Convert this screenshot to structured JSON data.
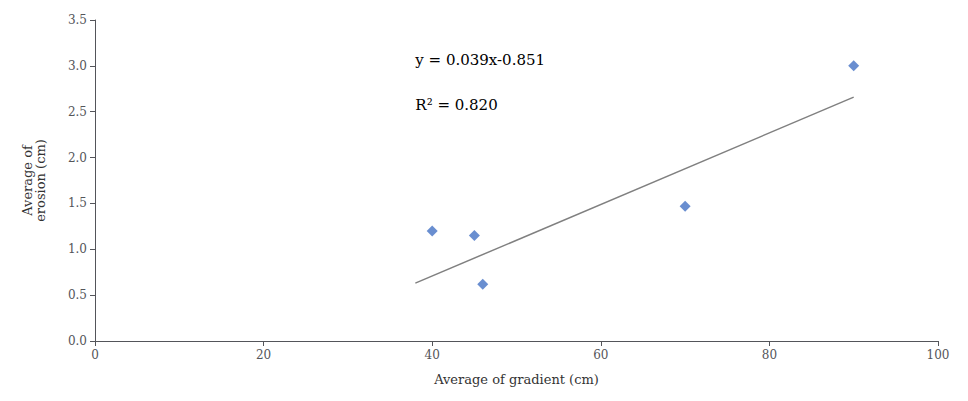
{
  "chart_data": {
    "type": "scatter",
    "xlabel": "Average of gradient (cm)",
    "ylabel": "Average of\nerosion (cm)",
    "annotations": [
      "y = 0.039x-0.851",
      "R² = 0.820"
    ],
    "series": [
      {
        "type": "scatter",
        "color": "#4472c4",
        "marker": "diamond",
        "x": [
          40,
          45,
          46,
          70,
          90
        ],
        "values": [
          1.2,
          1.15,
          0.62,
          1.47,
          3.0
        ]
      },
      {
        "type": "line",
        "color": "#808080",
        "line_style": "solid",
        "x": [
          38,
          90
        ],
        "values": [
          0.631,
          2.659
        ]
      }
    ],
    "xlim": [
      0,
      100
    ],
    "ylim": [
      0,
      3.5
    ],
    "xticks": [
      0,
      20,
      40,
      60,
      80,
      100
    ],
    "yticks": [
      {
        "value": 0,
        "label": "0.0"
      },
      0.5,
      {
        "value": 1.0,
        "label": "1.0"
      },
      1.5,
      {
        "value": 2.0,
        "label": "2.0"
      },
      2.5,
      {
        "value": 3.0,
        "label": "3.0"
      },
      3.5
    ],
    "grid": false
  }
}
